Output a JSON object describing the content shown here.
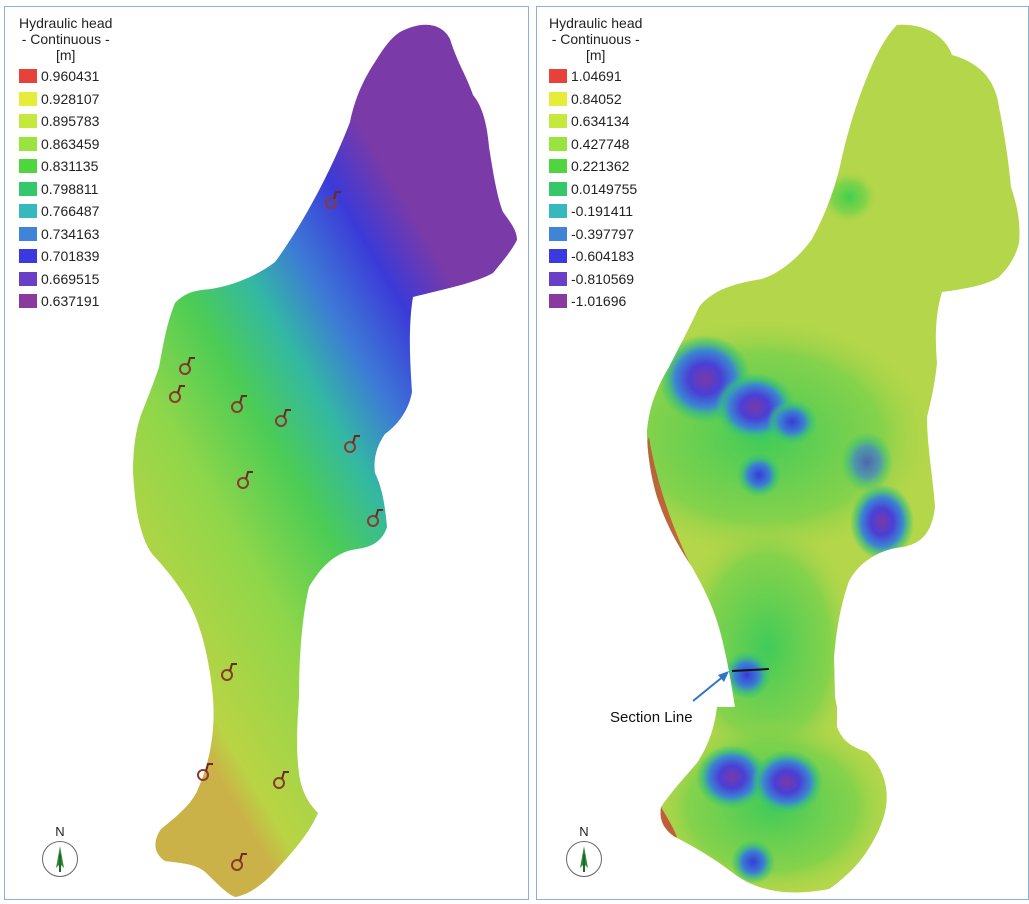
{
  "left_panel": {
    "legend": {
      "title": "Hydraulic head",
      "subtitle": "- Continuous -",
      "unit": "[m]",
      "items": [
        {
          "label": "0.960431",
          "color": "#e8413c"
        },
        {
          "label": "0.928107",
          "color": "#e6ec3a"
        },
        {
          "label": "0.895783",
          "color": "#c4e83c"
        },
        {
          "label": "0.863459",
          "color": "#99e33e"
        },
        {
          "label": "0.831135",
          "color": "#4fd63f"
        },
        {
          "label": "0.798811",
          "color": "#35c86a"
        },
        {
          "label": "0.766487",
          "color": "#35b8be"
        },
        {
          "label": "0.734163",
          "color": "#3f84d6"
        },
        {
          "label": "0.701839",
          "color": "#3a3ae0"
        },
        {
          "label": "0.669515",
          "color": "#6a3fc8"
        },
        {
          "label": "0.637191",
          "color": "#8a3a9e"
        }
      ]
    },
    "north_label": "N",
    "icons": {
      "well": "well-marker-icon",
      "north": "north-arrow-icon"
    }
  },
  "right_panel": {
    "legend": {
      "title": "Hydraulic head",
      "subtitle": "- Continuous -",
      "unit": "[m]",
      "items": [
        {
          "label": "1.04691",
          "color": "#e8413c"
        },
        {
          "label": "0.84052",
          "color": "#e6ec3a"
        },
        {
          "label": "0.634134",
          "color": "#c4e83c"
        },
        {
          "label": "0.427748",
          "color": "#99e33e"
        },
        {
          "label": "0.221362",
          "color": "#4fd63f"
        },
        {
          "label": "0.0149755",
          "color": "#35c86a"
        },
        {
          "label": "-0.191411",
          "color": "#35b8be"
        },
        {
          "label": "-0.397797",
          "color": "#3f84d6"
        },
        {
          "label": "-0.604183",
          "color": "#3a3ae0"
        },
        {
          "label": "-0.810569",
          "color": "#6a3fc8"
        },
        {
          "label": "-1.01696",
          "color": "#8a3a9e"
        }
      ]
    },
    "annotation": "Section Line",
    "north_label": "N",
    "icons": {
      "north": "north-arrow-icon",
      "arrow": "section-pointer-arrow-icon"
    }
  }
}
